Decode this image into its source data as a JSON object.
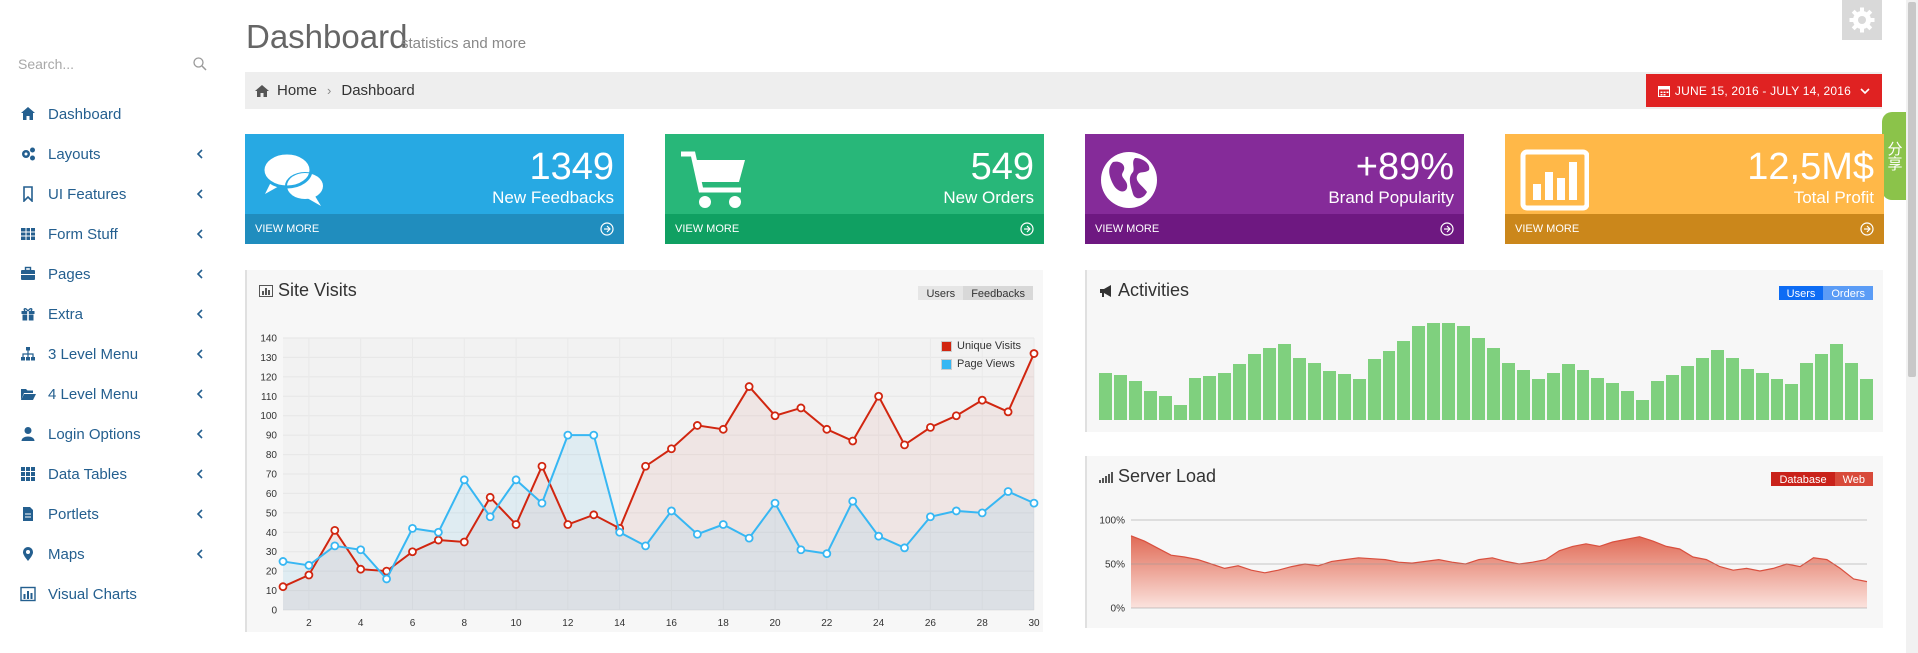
{
  "colors": {
    "link": "#245f8f",
    "tile_blue": "#27a9e3",
    "tile_blue_foot": "#208dbe",
    "tile_green": "#28b779",
    "tile_green_foot": "#10a062",
    "tile_purple": "#852b99",
    "tile_purple_foot": "#6e1881",
    "tile_yellow": "#ffb848",
    "tile_yellow_foot": "#cb871b",
    "date_red": "#e02222",
    "bar_green": "#7fd07e",
    "visits_red": "#d12610",
    "views_blue": "#37b7f3"
  },
  "sidebar": {
    "search_placeholder": "Search...",
    "items": [
      {
        "label": "Dashboard",
        "icon": "home-icon",
        "has_arrow": false
      },
      {
        "label": "Layouts",
        "icon": "cogs-icon",
        "has_arrow": true
      },
      {
        "label": "UI Features",
        "icon": "bookmark-icon",
        "has_arrow": true
      },
      {
        "label": "Form Stuff",
        "icon": "table-icon",
        "has_arrow": true
      },
      {
        "label": "Pages",
        "icon": "briefcase-icon",
        "has_arrow": true
      },
      {
        "label": "Extra",
        "icon": "gift-icon",
        "has_arrow": true
      },
      {
        "label": "3 Level Menu",
        "icon": "sitemap-icon",
        "has_arrow": true
      },
      {
        "label": "4 Level Menu",
        "icon": "folder-open-icon",
        "has_arrow": true
      },
      {
        "label": "Login Options",
        "icon": "user-icon",
        "has_arrow": true
      },
      {
        "label": "Data Tables",
        "icon": "grid-icon",
        "has_arrow": true
      },
      {
        "label": "Portlets",
        "icon": "file-icon",
        "has_arrow": true
      },
      {
        "label": "Maps",
        "icon": "map-marker-icon",
        "has_arrow": true
      },
      {
        "label": "Visual Charts",
        "icon": "bar-chart-icon",
        "has_arrow": false
      }
    ]
  },
  "header": {
    "title": "Dashboard",
    "subtitle": "statistics and more",
    "breadcrumb": [
      "Home",
      "Dashboard"
    ],
    "date_range": "JUNE 15, 2016 - JULY 14, 2016",
    "share_label": "分享"
  },
  "tiles": [
    {
      "value": "1349",
      "label": "New Feedbacks",
      "footer": "VIEW MORE",
      "icon": "comments-icon"
    },
    {
      "value": "549",
      "label": "New Orders",
      "footer": "VIEW MORE",
      "icon": "shopping-cart-icon"
    },
    {
      "value": "+89%",
      "label": "Brand Popularity",
      "footer": "VIEW MORE",
      "icon": "globe-icon"
    },
    {
      "value": "12,5M$",
      "label": "Total Profit",
      "footer": "VIEW MORE",
      "icon": "bar-chart-icon"
    }
  ],
  "site_visits": {
    "title": "Site Visits",
    "tabs": [
      "Users",
      "Feedbacks"
    ]
  },
  "activities": {
    "title": "Activities",
    "tabs": [
      "Users",
      "Orders"
    ]
  },
  "server_load": {
    "title": "Server Load",
    "tabs": [
      "Database",
      "Web"
    ]
  },
  "chart_data": [
    {
      "type": "line",
      "legend_position": "top-right",
      "grid": true,
      "xlim": [
        1,
        30
      ],
      "ylim": [
        0,
        140
      ],
      "x_ticks": [
        2,
        4,
        6,
        8,
        10,
        12,
        14,
        16,
        18,
        20,
        22,
        24,
        26,
        28,
        30
      ],
      "y_ticks": [
        0,
        10,
        20,
        30,
        40,
        50,
        60,
        70,
        80,
        90,
        100,
        110,
        120,
        130,
        140
      ],
      "x": [
        1,
        2,
        3,
        4,
        5,
        6,
        7,
        8,
        9,
        10,
        11,
        12,
        13,
        14,
        15,
        16,
        17,
        18,
        19,
        20,
        21,
        22,
        23,
        24,
        25,
        26,
        27,
        28,
        29,
        30
      ],
      "series": [
        {
          "name": "Unique Visits",
          "color": "#d12610",
          "values": [
            12,
            18,
            41,
            21,
            20,
            30,
            36,
            35,
            58,
            44,
            74,
            44,
            49,
            42,
            74,
            83,
            95,
            93,
            115,
            100,
            104,
            93,
            87,
            110,
            85,
            94,
            100,
            108,
            102,
            132
          ]
        },
        {
          "name": "Page Views",
          "color": "#37b7f3",
          "values": [
            25,
            23,
            33,
            31,
            16,
            42,
            40,
            67,
            48,
            67,
            55,
            90,
            90,
            40,
            33,
            51,
            39,
            44,
            37,
            55,
            31,
            29,
            56,
            38,
            32,
            48,
            51,
            50,
            61,
            55
          ]
        }
      ]
    },
    {
      "type": "bar",
      "series": [
        {
          "name": "Users",
          "values": [
            38,
            36,
            31,
            23,
            19,
            12,
            34,
            35,
            38,
            45,
            53,
            58,
            61,
            50,
            46,
            39,
            37,
            33,
            49,
            55,
            63,
            75,
            78,
            78,
            75,
            66,
            58,
            46,
            40,
            33,
            38,
            45,
            40,
            34,
            30,
            23,
            16,
            31,
            36,
            43,
            50,
            56,
            50,
            41,
            38,
            33,
            29,
            46,
            53,
            61,
            46,
            33
          ]
        }
      ]
    },
    {
      "type": "area",
      "ylim": [
        0,
        100
      ],
      "y_ticks": [
        "0%",
        "50%",
        "100%"
      ],
      "series": [
        {
          "name": "Database",
          "values": [
            82,
            76,
            68,
            60,
            58,
            55,
            50,
            45,
            48,
            43,
            40,
            43,
            47,
            50,
            48,
            53,
            55,
            57,
            56,
            55,
            52,
            51,
            53,
            55,
            52,
            50,
            55,
            57,
            53,
            50,
            52,
            55,
            65,
            70,
            73,
            70,
            75,
            78,
            81,
            76,
            70,
            67,
            58,
            55,
            47,
            43,
            45,
            42,
            45,
            50,
            47,
            57,
            55,
            45,
            33,
            30
          ]
        }
      ]
    }
  ]
}
